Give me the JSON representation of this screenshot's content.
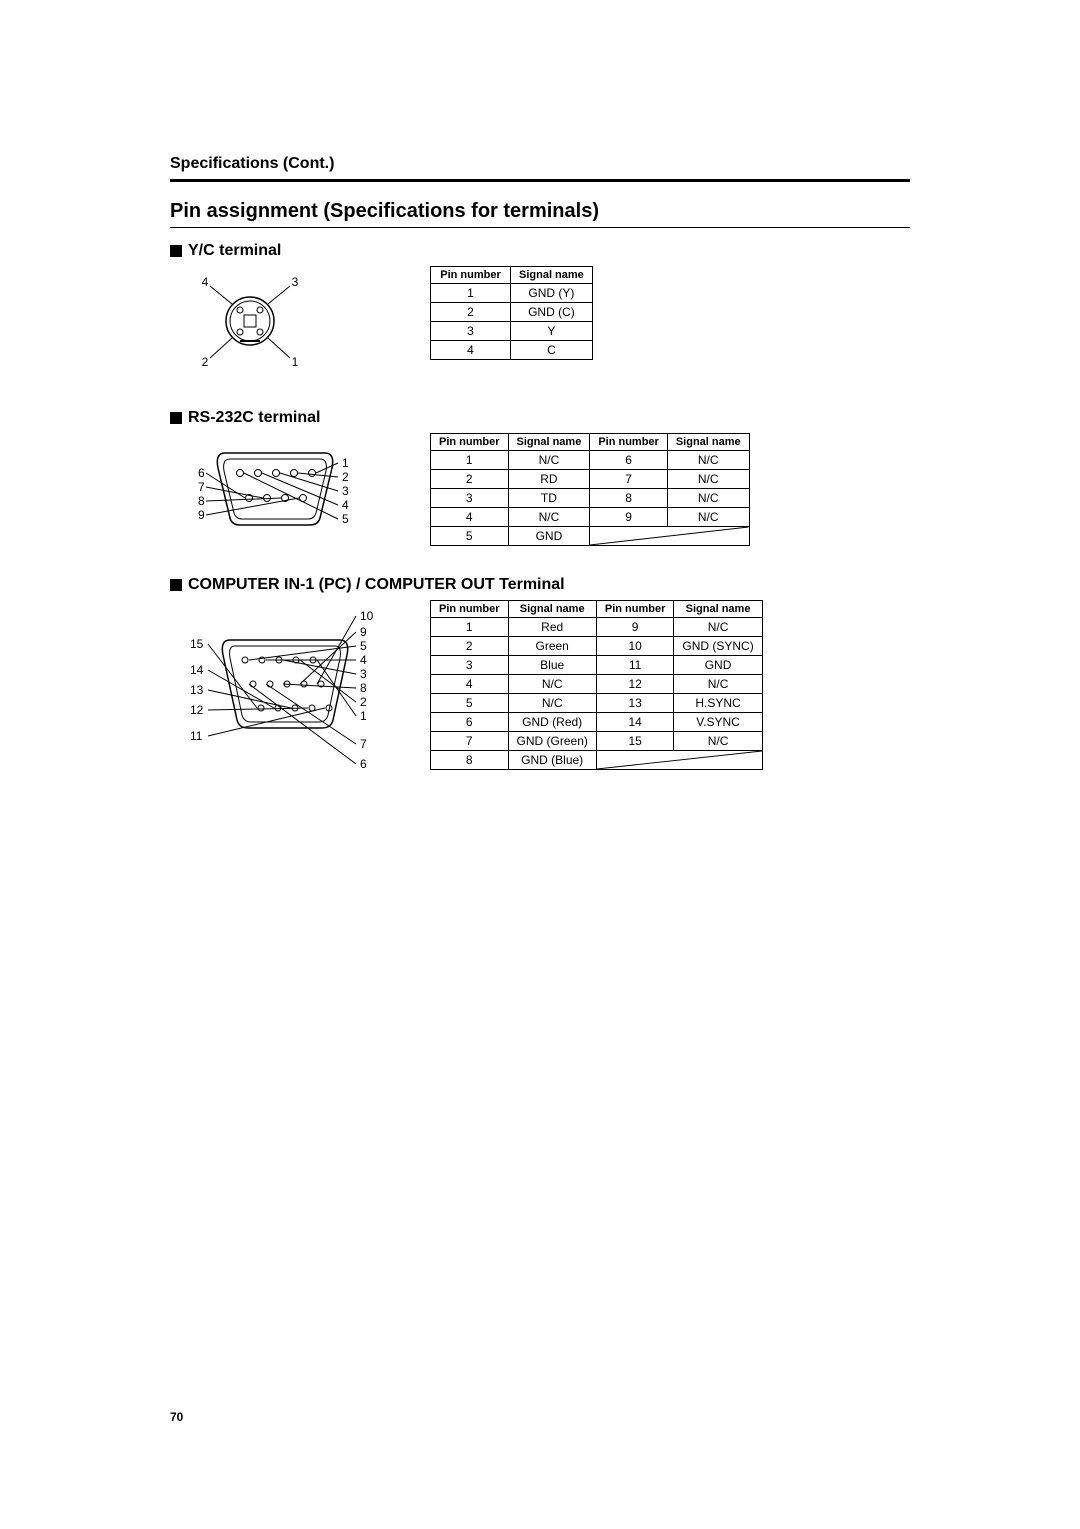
{
  "running_head": "Specifications (Cont.)",
  "title": "Pin assignment (Specifications for terminals)",
  "page_number": "70",
  "colors": {
    "text": "#000000",
    "background": "#ffffff",
    "rule": "#000000",
    "table_border": "#000000"
  },
  "yc": {
    "heading": "Y/C terminal",
    "labels": {
      "top_left": "4",
      "top_right": "3",
      "bottom_left": "2",
      "bottom_right": "1"
    },
    "table": {
      "columns": [
        "Pin number",
        "Signal name"
      ],
      "rows": [
        [
          "1",
          "GND (Y)"
        ],
        [
          "2",
          "GND (C)"
        ],
        [
          "3",
          "Y"
        ],
        [
          "4",
          "C"
        ]
      ]
    }
  },
  "rs232c": {
    "heading": "RS-232C terminal",
    "labels_left": [
      "6",
      "7",
      "8",
      "9"
    ],
    "labels_right": [
      "1",
      "2",
      "3",
      "4",
      "5"
    ],
    "table": {
      "columns": [
        "Pin number",
        "Signal name",
        "Pin number",
        "Signal name"
      ],
      "rows": [
        [
          "1",
          "N/C",
          "6",
          "N/C"
        ],
        [
          "2",
          "RD",
          "7",
          "N/C"
        ],
        [
          "3",
          "TD",
          "8",
          "N/C"
        ],
        [
          "4",
          "N/C",
          "9",
          "N/C"
        ],
        [
          "5",
          "GND",
          "",
          ""
        ]
      ]
    }
  },
  "vga": {
    "heading": "COMPUTER IN-1 (PC) / COMPUTER OUT Terminal",
    "labels_left": [
      "15",
      "14",
      "13",
      "12",
      "11"
    ],
    "labels_right": [
      "10",
      "9",
      "5",
      "4",
      "3",
      "8",
      "2",
      "1",
      "7",
      "6"
    ],
    "table": {
      "columns": [
        "Pin number",
        "Signal name",
        "Pin number",
        "Signal name"
      ],
      "rows": [
        [
          "1",
          "Red",
          "9",
          "N/C"
        ],
        [
          "2",
          "Green",
          "10",
          "GND (SYNC)"
        ],
        [
          "3",
          "Blue",
          "11",
          "GND"
        ],
        [
          "4",
          "N/C",
          "12",
          "N/C"
        ],
        [
          "5",
          "N/C",
          "13",
          "H.SYNC"
        ],
        [
          "6",
          "GND (Red)",
          "14",
          "V.SYNC"
        ],
        [
          "7",
          "GND (Green)",
          "15",
          "N/C"
        ],
        [
          "8",
          "GND (Blue)",
          "",
          ""
        ]
      ]
    }
  }
}
